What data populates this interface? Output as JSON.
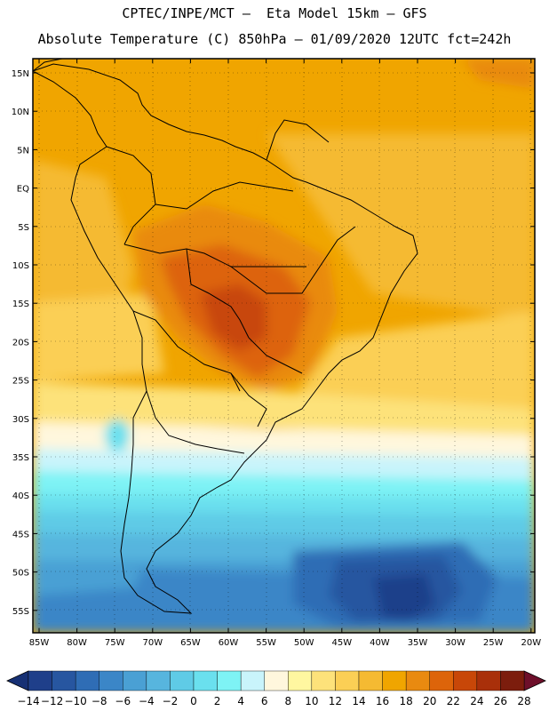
{
  "header": {
    "line1": "CPTEC/INPE/MCT –  Eta Model 15km – GFS",
    "line2": "Absolute Temperature (C) 850hPa – 01/09/2020 12UTC fct=242h"
  },
  "map": {
    "lat_labels": [
      "15N",
      "10N",
      "5N",
      "EQ",
      "5S",
      "10S",
      "15S",
      "20S",
      "25S",
      "30S",
      "35S",
      "40S",
      "45S",
      "50S",
      "55S"
    ],
    "lon_labels": [
      "85W",
      "80W",
      "75W",
      "70W",
      "65W",
      "60W",
      "55W",
      "50W",
      "45W",
      "40W",
      "35W",
      "30W",
      "25W",
      "20W"
    ]
  },
  "colorbar": {
    "labels": [
      "-14",
      "-12",
      "-10",
      "-8",
      "-6",
      "-4",
      "-2",
      "0",
      "2",
      "4",
      "6",
      "8",
      "10",
      "12",
      "14",
      "16",
      "18",
      "20",
      "22",
      "24",
      "26",
      "28"
    ],
    "colors": [
      "#1f3f8a",
      "#2756a0",
      "#2f6db5",
      "#3b86c7",
      "#4aa0d4",
      "#57b5de",
      "#5fcbe6",
      "#6ae0ee",
      "#7ef3f5",
      "#c9f4fb",
      "#fff7dd",
      "#fff7a0",
      "#fde27a",
      "#fbcf55",
      "#f5ba32",
      "#f0a500",
      "#e98a10",
      "#dd640a",
      "#c84708",
      "#a9300a",
      "#7c1d0d"
    ],
    "low_arrow_color": "#163074",
    "high_arrow_color": "#6e0f2a"
  }
}
